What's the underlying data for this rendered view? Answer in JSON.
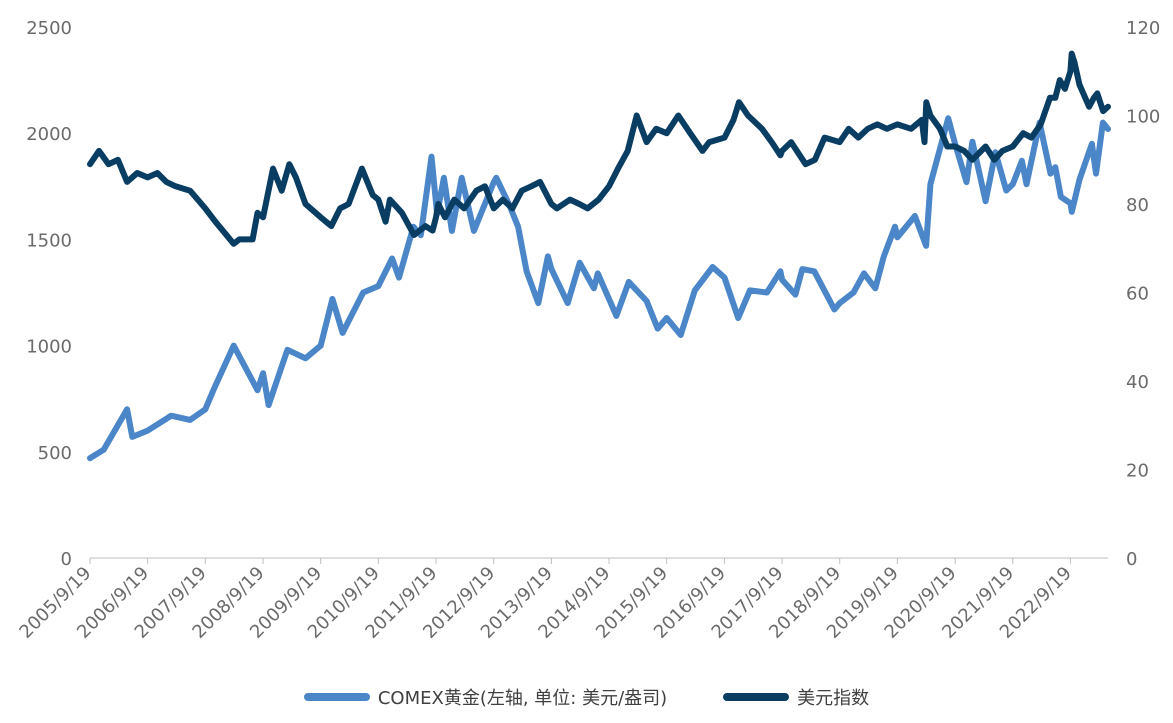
{
  "chart_data": {
    "type": "line",
    "x_tick_labels": [
      "2005/9/19",
      "2006/9/19",
      "2007/9/19",
      "2008/9/19",
      "2009/9/19",
      "2010/9/19",
      "2011/9/19",
      "2012/9/19",
      "2013/9/19",
      "2014/9/19",
      "2015/9/19",
      "2016/9/19",
      "2017/9/19",
      "2018/9/19",
      "2019/9/19",
      "2020/9/19",
      "2021/9/19",
      "2022/9/19"
    ],
    "x_range": [
      "2005-09-19",
      "2023-05-15"
    ],
    "y_left": {
      "ticks": [
        "0",
        "500",
        "1000",
        "1500",
        "2000",
        "2500"
      ],
      "ylim": [
        0,
        2500
      ]
    },
    "y_right": {
      "ticks": [
        "0",
        "20",
        "40",
        "60",
        "80",
        "100",
        "120"
      ],
      "ylim": [
        0,
        120
      ]
    },
    "grid": false,
    "legend_position": "bottom",
    "series": [
      {
        "name": "COMEX黄金(左轴, 单位: 美元/盎司)",
        "axis": "left",
        "color": "#4a86c8",
        "points": [
          [
            "2005-09-19",
            470
          ],
          [
            "2005-12-15",
            510
          ],
          [
            "2006-05-12",
            700
          ],
          [
            "2006-06-14",
            570
          ],
          [
            "2006-09-19",
            600
          ],
          [
            "2007-02-15",
            670
          ],
          [
            "2007-06-15",
            650
          ],
          [
            "2007-09-19",
            700
          ],
          [
            "2007-11-15",
            800
          ],
          [
            "2008-03-17",
            1000
          ],
          [
            "2008-08-15",
            790
          ],
          [
            "2008-09-19",
            870
          ],
          [
            "2008-10-24",
            720
          ],
          [
            "2009-02-20",
            980
          ],
          [
            "2009-06-15",
            940
          ],
          [
            "2009-09-19",
            1000
          ],
          [
            "2009-12-02",
            1220
          ],
          [
            "2010-02-05",
            1060
          ],
          [
            "2010-06-15",
            1250
          ],
          [
            "2010-09-19",
            1280
          ],
          [
            "2010-12-15",
            1410
          ],
          [
            "2011-01-28",
            1320
          ],
          [
            "2011-04-29",
            1560
          ],
          [
            "2011-06-15",
            1520
          ],
          [
            "2011-08-22",
            1890
          ],
          [
            "2011-09-26",
            1620
          ],
          [
            "2011-11-08",
            1790
          ],
          [
            "2011-12-29",
            1540
          ],
          [
            "2012-02-29",
            1790
          ],
          [
            "2012-05-16",
            1540
          ],
          [
            "2012-09-19",
            1770
          ],
          [
            "2012-10-05",
            1790
          ],
          [
            "2012-12-28",
            1660
          ],
          [
            "2013-02-20",
            1560
          ],
          [
            "2013-04-15",
            1350
          ],
          [
            "2013-06-28",
            1200
          ],
          [
            "2013-08-28",
            1420
          ],
          [
            "2013-09-19",
            1360
          ],
          [
            "2013-12-31",
            1200
          ],
          [
            "2014-03-17",
            1390
          ],
          [
            "2014-06-15",
            1270
          ],
          [
            "2014-07-10",
            1340
          ],
          [
            "2014-09-19",
            1220
          ],
          [
            "2014-11-05",
            1140
          ],
          [
            "2015-01-22",
            1300
          ],
          [
            "2015-05-15",
            1210
          ],
          [
            "2015-07-24",
            1080
          ],
          [
            "2015-09-19",
            1130
          ],
          [
            "2015-12-17",
            1050
          ],
          [
            "2016-03-15",
            1260
          ],
          [
            "2016-07-06",
            1370
          ],
          [
            "2016-09-19",
            1320
          ],
          [
            "2016-12-15",
            1130
          ],
          [
            "2017-02-27",
            1260
          ],
          [
            "2017-06-15",
            1250
          ],
          [
            "2017-09-08",
            1350
          ],
          [
            "2017-09-19",
            1310
          ],
          [
            "2017-12-12",
            1240
          ],
          [
            "2018-01-25",
            1360
          ],
          [
            "2018-04-11",
            1350
          ],
          [
            "2018-08-16",
            1170
          ],
          [
            "2018-09-19",
            1200
          ],
          [
            "2018-12-15",
            1250
          ],
          [
            "2019-02-20",
            1340
          ],
          [
            "2019-05-02",
            1270
          ],
          [
            "2019-06-25",
            1420
          ],
          [
            "2019-09-04",
            1560
          ],
          [
            "2019-09-19",
            1510
          ],
          [
            "2020-01-08",
            1610
          ],
          [
            "2020-03-19",
            1470
          ],
          [
            "2020-04-15",
            1760
          ],
          [
            "2020-08-06",
            2070
          ],
          [
            "2020-09-19",
            1950
          ],
          [
            "2020-11-30",
            1770
          ],
          [
            "2021-01-06",
            1960
          ],
          [
            "2021-03-31",
            1680
          ],
          [
            "2021-06-01",
            1910
          ],
          [
            "2021-08-09",
            1730
          ],
          [
            "2021-09-19",
            1760
          ],
          [
            "2021-11-16",
            1870
          ],
          [
            "2021-12-15",
            1760
          ],
          [
            "2022-03-08",
            2050
          ],
          [
            "2022-05-16",
            1810
          ],
          [
            "2022-06-15",
            1840
          ],
          [
            "2022-07-21",
            1700
          ],
          [
            "2022-09-19",
            1670
          ],
          [
            "2022-09-28",
            1630
          ],
          [
            "2022-11-15",
            1780
          ],
          [
            "2023-02-02",
            1950
          ],
          [
            "2023-02-28",
            1810
          ],
          [
            "2023-04-13",
            2050
          ],
          [
            "2023-05-15",
            2020
          ]
        ]
      },
      {
        "name": "美元指数",
        "axis": "right",
        "color": "#0a3d62",
        "points": [
          [
            "2005-09-19",
            89
          ],
          [
            "2005-11-15",
            92
          ],
          [
            "2006-01-15",
            89
          ],
          [
            "2006-03-15",
            90
          ],
          [
            "2006-05-12",
            85
          ],
          [
            "2006-07-15",
            87
          ],
          [
            "2006-09-19",
            86
          ],
          [
            "2006-11-20",
            87
          ],
          [
            "2007-01-15",
            85
          ],
          [
            "2007-03-15",
            84
          ],
          [
            "2007-06-15",
            83
          ],
          [
            "2007-09-19",
            79
          ],
          [
            "2007-11-22",
            76
          ],
          [
            "2008-03-17",
            71
          ],
          [
            "2008-04-22",
            72
          ],
          [
            "2008-07-15",
            72
          ],
          [
            "2008-08-15",
            78
          ],
          [
            "2008-09-19",
            77
          ],
          [
            "2008-11-21",
            88
          ],
          [
            "2009-01-15",
            83
          ],
          [
            "2009-03-04",
            89
          ],
          [
            "2009-04-15",
            86
          ],
          [
            "2009-06-15",
            80
          ],
          [
            "2009-09-19",
            77
          ],
          [
            "2009-11-25",
            75
          ],
          [
            "2010-01-20",
            79
          ],
          [
            "2010-03-15",
            80
          ],
          [
            "2010-06-07",
            88
          ],
          [
            "2010-08-15",
            82
          ],
          [
            "2010-09-19",
            81
          ],
          [
            "2010-11-04",
            76
          ],
          [
            "2010-12-01",
            81
          ],
          [
            "2011-02-15",
            78
          ],
          [
            "2011-05-03",
            73
          ],
          [
            "2011-07-15",
            75
          ],
          [
            "2011-08-29",
            74
          ],
          [
            "2011-09-19",
            77
          ],
          [
            "2011-10-04",
            80
          ],
          [
            "2011-11-15",
            77
          ],
          [
            "2012-01-13",
            81
          ],
          [
            "2012-03-15",
            79
          ],
          [
            "2012-06-01",
            83
          ],
          [
            "2012-07-25",
            84
          ],
          [
            "2012-09-19",
            79
          ],
          [
            "2012-11-15",
            81
          ],
          [
            "2013-01-15",
            79
          ],
          [
            "2013-03-15",
            83
          ],
          [
            "2013-05-15",
            84
          ],
          [
            "2013-07-09",
            85
          ],
          [
            "2013-09-19",
            80
          ],
          [
            "2013-10-24",
            79
          ],
          [
            "2014-01-15",
            81
          ],
          [
            "2014-03-15",
            80
          ],
          [
            "2014-05-06",
            79
          ],
          [
            "2014-07-15",
            81
          ],
          [
            "2014-09-19",
            84
          ],
          [
            "2014-11-15",
            88
          ],
          [
            "2015-01-15",
            92
          ],
          [
            "2015-03-13",
            100
          ],
          [
            "2015-05-15",
            94
          ],
          [
            "2015-07-15",
            97
          ],
          [
            "2015-09-19",
            96
          ],
          [
            "2015-12-02",
            100
          ],
          [
            "2016-02-15",
            96
          ],
          [
            "2016-05-03",
            92
          ],
          [
            "2016-06-15",
            94
          ],
          [
            "2016-09-19",
            95
          ],
          [
            "2016-11-15",
            99
          ],
          [
            "2016-12-20",
            103
          ],
          [
            "2017-02-15",
            100
          ],
          [
            "2017-05-15",
            97
          ],
          [
            "2017-07-15",
            94
          ],
          [
            "2017-09-08",
            91
          ],
          [
            "2017-09-19",
            92
          ],
          [
            "2017-11-15",
            94
          ],
          [
            "2018-02-15",
            89
          ],
          [
            "2018-04-15",
            90
          ],
          [
            "2018-06-15",
            95
          ],
          [
            "2018-09-19",
            94
          ],
          [
            "2018-11-15",
            97
          ],
          [
            "2019-01-15",
            95
          ],
          [
            "2019-03-15",
            97
          ],
          [
            "2019-05-15",
            98
          ],
          [
            "2019-07-15",
            97
          ],
          [
            "2019-09-19",
            98
          ],
          [
            "2019-12-15",
            97
          ],
          [
            "2020-02-20",
            99
          ],
          [
            "2020-03-09",
            94
          ],
          [
            "2020-03-20",
            103
          ],
          [
            "2020-04-15",
            100
          ],
          [
            "2020-06-15",
            97
          ],
          [
            "2020-07-31",
            93
          ],
          [
            "2020-09-19",
            93
          ],
          [
            "2020-11-15",
            92
          ],
          [
            "2021-01-06",
            90
          ],
          [
            "2021-03-31",
            93
          ],
          [
            "2021-05-25",
            90
          ],
          [
            "2021-07-15",
            92
          ],
          [
            "2021-09-19",
            93
          ],
          [
            "2021-11-24",
            96
          ],
          [
            "2022-01-15",
            95
          ],
          [
            "2022-03-15",
            98
          ],
          [
            "2022-05-13",
            104
          ],
          [
            "2022-06-15",
            104
          ],
          [
            "2022-07-14",
            108
          ],
          [
            "2022-08-15",
            106
          ],
          [
            "2022-09-19",
            110
          ],
          [
            "2022-09-27",
            114
          ],
          [
            "2022-10-15",
            112
          ],
          [
            "2022-11-15",
            107
          ],
          [
            "2023-01-15",
            102
          ],
          [
            "2023-02-15",
            104
          ],
          [
            "2023-03-08",
            105
          ],
          [
            "2023-04-14",
            101
          ],
          [
            "2023-05-15",
            102
          ]
        ]
      }
    ]
  }
}
